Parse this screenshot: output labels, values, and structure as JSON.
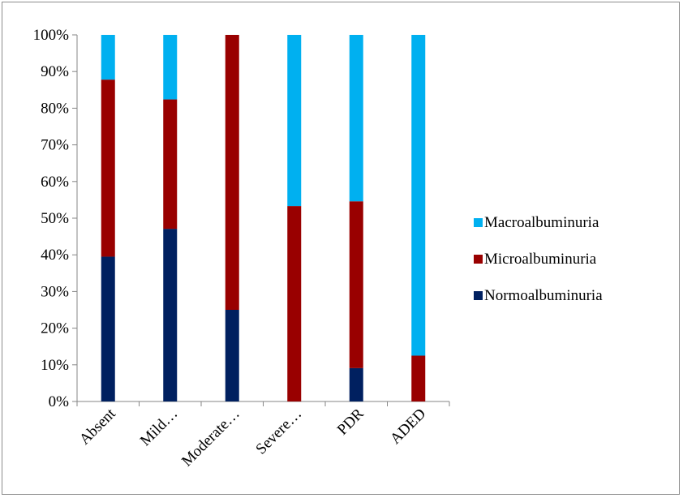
{
  "chart_data": {
    "type": "bar",
    "stacked": true,
    "percent_stacked": true,
    "categories": [
      "Absent",
      "Mild…",
      "Moderate…",
      "Severe…",
      "PDR",
      "ADED"
    ],
    "series": [
      {
        "name": "Normoalbuminuria",
        "color": "#002060",
        "values": [
          39.5,
          47.1,
          25.0,
          0.0,
          9.1,
          0.0
        ]
      },
      {
        "name": "Microalbuminuria",
        "color": "#990000",
        "values": [
          48.3,
          35.3,
          75.0,
          53.3,
          45.5,
          12.5
        ]
      },
      {
        "name": "Macroalbuminuria",
        "color": "#00B0F0",
        "values": [
          12.2,
          17.6,
          0.0,
          46.7,
          45.4,
          87.5
        ]
      }
    ],
    "y_ticks": [
      "0%",
      "10%",
      "20%",
      "30%",
      "40%",
      "50%",
      "60%",
      "70%",
      "80%",
      "90%",
      "100%"
    ],
    "ylim": [
      0,
      100
    ],
    "legend_position": "right",
    "grid": false
  }
}
